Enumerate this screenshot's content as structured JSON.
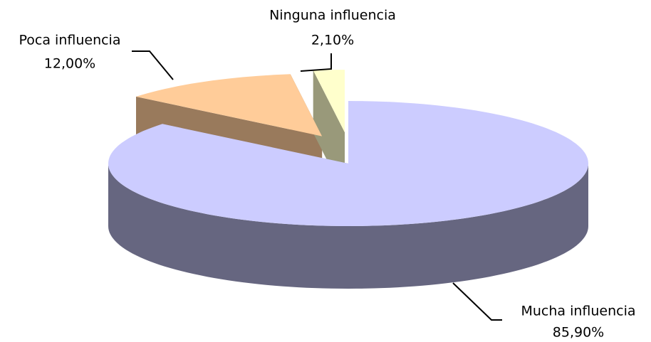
{
  "chart_data": {
    "type": "pie3d",
    "categories": [
      "Mucha influencia",
      "Poca influencia",
      "Ninguna influencia"
    ],
    "values": [
      85.9,
      12.0,
      2.1
    ],
    "value_labels": [
      "85,90%",
      "12,00%",
      "2,10%"
    ],
    "colors": [
      "#ccccff",
      "#ffcc99",
      "#ffffcc"
    ]
  }
}
